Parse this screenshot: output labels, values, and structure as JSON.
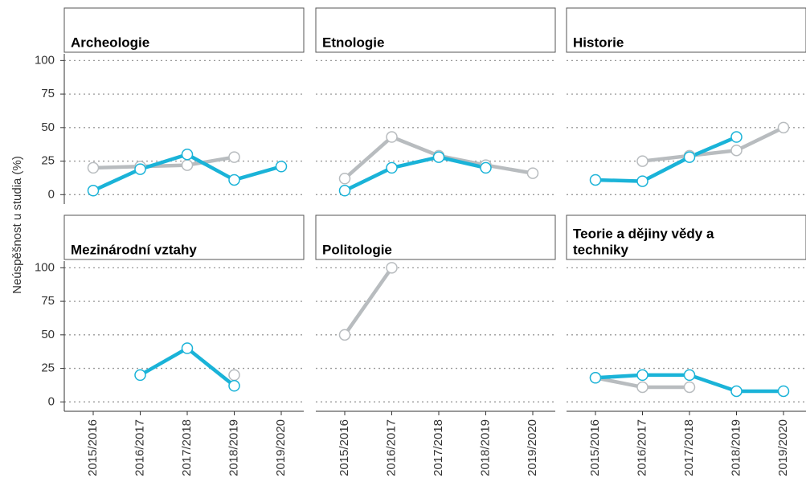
{
  "ylabel": "Neúspěšnost u studia (%)",
  "chart_data": [
    {
      "type": "line",
      "title": [
        "Archeologie"
      ],
      "categories": [
        "2015/2016",
        "2016/2017",
        "2017/2018",
        "2018/2019",
        "2019/2020"
      ],
      "ylim": [
        -7,
        105
      ],
      "yticks": [
        0,
        25,
        50,
        75,
        100
      ],
      "grid": true,
      "series": [
        {
          "color": "#b8bcbf",
          "values": [
            20,
            21,
            22,
            28,
            null
          ]
        },
        {
          "color": "#1ab3d8",
          "values": [
            3,
            19,
            30,
            11,
            21
          ]
        }
      ]
    },
    {
      "type": "line",
      "title": [
        "Etnologie"
      ],
      "categories": [
        "2015/2016",
        "2016/2017",
        "2017/2018",
        "2018/2019",
        "2019/2020"
      ],
      "ylim": [
        -7,
        105
      ],
      "yticks": [
        0,
        25,
        50,
        75,
        100
      ],
      "grid": true,
      "series": [
        {
          "color": "#b8bcbf",
          "values": [
            12,
            43,
            29,
            22,
            16
          ]
        },
        {
          "color": "#1ab3d8",
          "values": [
            3,
            20,
            28,
            20,
            null
          ]
        }
      ]
    },
    {
      "type": "line",
      "title": [
        "Historie"
      ],
      "categories": [
        "2015/2016",
        "2016/2017",
        "2017/2018",
        "2018/2019",
        "2019/2020"
      ],
      "ylim": [
        -7,
        105
      ],
      "yticks": [
        0,
        25,
        50,
        75,
        100
      ],
      "grid": true,
      "series": [
        {
          "color": "#b8bcbf",
          "values": [
            null,
            25,
            29,
            33,
            50
          ]
        },
        {
          "color": "#1ab3d8",
          "values": [
            11,
            10,
            28,
            43,
            null
          ]
        }
      ]
    },
    {
      "type": "line",
      "title": [
        "Mezinárodní vztahy"
      ],
      "categories": [
        "2015/2016",
        "2016/2017",
        "2017/2018",
        "2018/2019",
        "2019/2020"
      ],
      "ylim": [
        -7,
        105
      ],
      "yticks": [
        0,
        25,
        50,
        75,
        100
      ],
      "grid": true,
      "series": [
        {
          "color": "#b8bcbf",
          "values": [
            null,
            null,
            null,
            20,
            null
          ]
        },
        {
          "color": "#1ab3d8",
          "values": [
            null,
            20,
            40,
            12,
            null
          ]
        }
      ]
    },
    {
      "type": "line",
      "title": [
        "Politologie"
      ],
      "categories": [
        "2015/2016",
        "2016/2017",
        "2017/2018",
        "2018/2019",
        "2019/2020"
      ],
      "ylim": [
        -7,
        105
      ],
      "yticks": [
        0,
        25,
        50,
        75,
        100
      ],
      "grid": true,
      "series": [
        {
          "color": "#b8bcbf",
          "values": [
            50,
            100,
            null,
            null,
            null
          ]
        },
        {
          "color": "#1ab3d8",
          "values": [
            null,
            null,
            null,
            null,
            null
          ]
        }
      ]
    },
    {
      "type": "line",
      "title": [
        "Teorie a dějiny vědy a",
        "techniky"
      ],
      "categories": [
        "2015/2016",
        "2016/2017",
        "2017/2018",
        "2018/2019",
        "2019/2020"
      ],
      "ylim": [
        -7,
        105
      ],
      "yticks": [
        0,
        25,
        50,
        75,
        100
      ],
      "grid": true,
      "series": [
        {
          "color": "#b8bcbf",
          "values": [
            18,
            11,
            11,
            null,
            null
          ]
        },
        {
          "color": "#1ab3d8",
          "values": [
            18,
            20,
            20,
            8,
            8
          ]
        }
      ]
    }
  ]
}
